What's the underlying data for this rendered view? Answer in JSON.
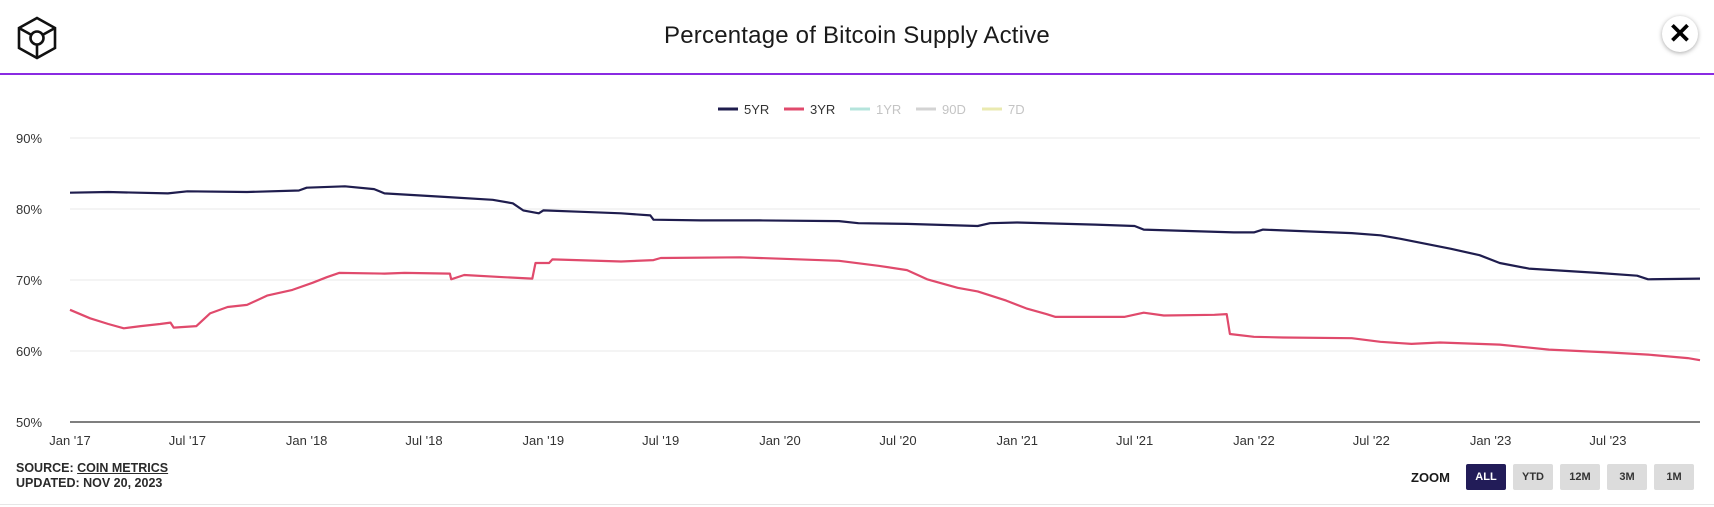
{
  "header": {
    "title": "Percentage of Bitcoin Supply Active"
  },
  "footer": {
    "source_prefix": "SOURCE: ",
    "source_link": "COIN METRICS",
    "updated": "UPDATED: NOV 20, 2023"
  },
  "zoom": {
    "label": "ZOOM",
    "buttons": [
      {
        "label": "ALL",
        "active": true
      },
      {
        "label": "YTD",
        "active": false
      },
      {
        "label": "12M",
        "active": false
      },
      {
        "label": "3M",
        "active": false
      },
      {
        "label": "1M",
        "active": false
      }
    ]
  },
  "chart_data": {
    "type": "line",
    "title": "Percentage of Bitcoin Supply Active",
    "legend_position": "top-center",
    "grid": true,
    "ylim": [
      50,
      90
    ],
    "y_ticks": [
      "50%",
      "60%",
      "70%",
      "80%",
      "90%"
    ],
    "x_ticks": [
      "Jan '17",
      "Jul '17",
      "Jan '18",
      "Jul '18",
      "Jan '19",
      "Jul '19",
      "Jan '20",
      "Jul '20",
      "Jan '21",
      "Jul '21",
      "Jan '22",
      "Jul '22",
      "Jan '23",
      "Jul '23"
    ],
    "x_range": [
      "2017-01-01",
      "2023-11-20"
    ],
    "series": [
      {
        "name": "5YR",
        "color": "#1f1d4e",
        "visible": true,
        "points": [
          [
            "2017-01-01",
            82.3
          ],
          [
            "2017-03-01",
            82.4
          ],
          [
            "2017-06-01",
            82.2
          ],
          [
            "2017-07-01",
            82.5
          ],
          [
            "2017-10-01",
            82.4
          ],
          [
            "2017-12-20",
            82.6
          ],
          [
            "2018-01-01",
            83.0
          ],
          [
            "2018-03-01",
            83.2
          ],
          [
            "2018-04-15",
            82.8
          ],
          [
            "2018-05-01",
            82.2
          ],
          [
            "2018-08-01",
            81.7
          ],
          [
            "2018-10-15",
            81.3
          ],
          [
            "2018-11-15",
            80.8
          ],
          [
            "2018-12-01",
            79.8
          ],
          [
            "2018-12-25",
            79.4
          ],
          [
            "2019-01-01",
            79.8
          ],
          [
            "2019-03-01",
            79.6
          ],
          [
            "2019-05-01",
            79.4
          ],
          [
            "2019-06-15",
            79.1
          ],
          [
            "2019-06-20",
            78.5
          ],
          [
            "2019-09-01",
            78.4
          ],
          [
            "2019-12-01",
            78.4
          ],
          [
            "2020-04-01",
            78.3
          ],
          [
            "2020-05-01",
            78.0
          ],
          [
            "2020-07-15",
            77.9
          ],
          [
            "2020-11-01",
            77.6
          ],
          [
            "2020-11-20",
            78.0
          ],
          [
            "2021-01-01",
            78.1
          ],
          [
            "2021-05-01",
            77.8
          ],
          [
            "2021-07-01",
            77.6
          ],
          [
            "2021-07-15",
            77.1
          ],
          [
            "2021-12-01",
            76.7
          ],
          [
            "2022-01-01",
            76.7
          ],
          [
            "2022-01-15",
            77.1
          ],
          [
            "2022-06-01",
            76.6
          ],
          [
            "2022-07-15",
            76.3
          ],
          [
            "2022-08-15",
            75.8
          ],
          [
            "2022-11-01",
            74.4
          ],
          [
            "2022-12-15",
            73.5
          ],
          [
            "2023-01-15",
            72.4
          ],
          [
            "2023-03-01",
            71.6
          ],
          [
            "2023-06-15",
            71.0
          ],
          [
            "2023-08-15",
            70.6
          ],
          [
            "2023-09-01",
            70.1
          ],
          [
            "2023-11-20",
            70.2
          ]
        ]
      },
      {
        "name": "3YR",
        "color": "#e04a6c",
        "visible": true,
        "points": [
          [
            "2017-01-01",
            65.8
          ],
          [
            "2017-02-01",
            64.6
          ],
          [
            "2017-03-01",
            63.8
          ],
          [
            "2017-03-25",
            63.2
          ],
          [
            "2017-04-20",
            63.5
          ],
          [
            "2017-05-20",
            63.8
          ],
          [
            "2017-06-05",
            64.0
          ],
          [
            "2017-06-10",
            63.3
          ],
          [
            "2017-07-15",
            63.5
          ],
          [
            "2017-08-05",
            65.3
          ],
          [
            "2017-09-01",
            66.2
          ],
          [
            "2017-10-01",
            66.5
          ],
          [
            "2017-11-01",
            67.8
          ],
          [
            "2017-12-10",
            68.6
          ],
          [
            "2018-01-10",
            69.6
          ],
          [
            "2018-02-01",
            70.4
          ],
          [
            "2018-02-20",
            71.0
          ],
          [
            "2018-05-01",
            70.9
          ],
          [
            "2018-06-01",
            71.0
          ],
          [
            "2018-08-10",
            70.9
          ],
          [
            "2018-08-12",
            70.1
          ],
          [
            "2018-09-01",
            70.7
          ],
          [
            "2018-11-01",
            70.4
          ],
          [
            "2018-12-15",
            70.2
          ],
          [
            "2018-12-20",
            72.4
          ],
          [
            "2019-01-10",
            72.4
          ],
          [
            "2019-01-15",
            72.9
          ],
          [
            "2019-05-01",
            72.6
          ],
          [
            "2019-06-20",
            72.8
          ],
          [
            "2019-07-01",
            73.1
          ],
          [
            "2019-11-01",
            73.2
          ],
          [
            "2020-01-01",
            73.0
          ],
          [
            "2020-04-01",
            72.7
          ],
          [
            "2020-06-01",
            72.0
          ],
          [
            "2020-07-15",
            71.4
          ],
          [
            "2020-08-15",
            70.1
          ],
          [
            "2020-10-01",
            68.9
          ],
          [
            "2020-11-01",
            68.4
          ],
          [
            "2020-12-15",
            67.1
          ],
          [
            "2021-01-15",
            66.0
          ],
          [
            "2021-02-15",
            65.2
          ],
          [
            "2021-03-01",
            64.8
          ],
          [
            "2021-06-15",
            64.8
          ],
          [
            "2021-07-15",
            65.4
          ],
          [
            "2021-08-15",
            65.0
          ],
          [
            "2021-11-01",
            65.1
          ],
          [
            "2021-11-20",
            65.2
          ],
          [
            "2021-11-25",
            62.4
          ],
          [
            "2022-01-01",
            62.0
          ],
          [
            "2022-02-15",
            61.9
          ],
          [
            "2022-06-01",
            61.8
          ],
          [
            "2022-07-15",
            61.3
          ],
          [
            "2022-09-01",
            61.0
          ],
          [
            "2022-10-15",
            61.2
          ],
          [
            "2023-01-15",
            60.9
          ],
          [
            "2023-04-01",
            60.2
          ],
          [
            "2023-07-01",
            59.8
          ],
          [
            "2023-09-01",
            59.5
          ],
          [
            "2023-11-01",
            59.0
          ],
          [
            "2023-11-20",
            58.7
          ]
        ]
      },
      {
        "name": "1YR",
        "color": "#b5e4dc",
        "visible": false,
        "points": []
      },
      {
        "name": "90D",
        "color": "#d3d3d3",
        "visible": false,
        "points": []
      },
      {
        "name": "7D",
        "color": "#eaeab0",
        "visible": false,
        "points": []
      }
    ]
  }
}
